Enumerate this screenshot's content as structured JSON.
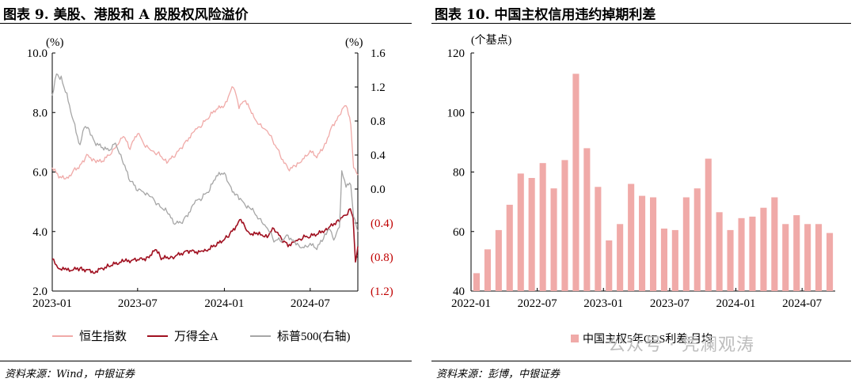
{
  "left": {
    "title": "图表 9. 美股、港股和 A 股股权风险溢价",
    "source": "资料来源：Wind，中银证券",
    "chart_data": {
      "type": "line",
      "x_ticks": [
        "2023-01",
        "2023-07",
        "2024-01",
        "2024-07"
      ],
      "y_left": {
        "unit": "(%)",
        "ticks": [
          "10.0",
          "8.0",
          "6.0",
          "4.0",
          "2.0"
        ],
        "ylim": [
          2.0,
          10.0
        ]
      },
      "y_right": {
        "unit": "(%)",
        "ticks": [
          "1.6",
          "1.2",
          "0.8",
          "0.4",
          "0.0",
          "(0.4)",
          "(0.8)",
          "(1.2)"
        ],
        "ylim": [
          -1.2,
          1.6
        ]
      },
      "x_range": [
        "2023-01-01",
        "2024-10-10"
      ],
      "series": [
        {
          "name": "恒生指数",
          "axis": "left",
          "color": "#f0aaa8",
          "points": [
            [
              "2023-01-01",
              6.15
            ],
            [
              "2023-01-15",
              5.85
            ],
            [
              "2023-02-01",
              5.75
            ],
            [
              "2023-02-15",
              6.05
            ],
            [
              "2023-03-01",
              6.2
            ],
            [
              "2023-03-15",
              6.55
            ],
            [
              "2023-04-01",
              6.4
            ],
            [
              "2023-04-15",
              6.35
            ],
            [
              "2023-05-01",
              6.55
            ],
            [
              "2023-05-15",
              6.85
            ],
            [
              "2023-06-01",
              7.2
            ],
            [
              "2023-06-15",
              6.8
            ],
            [
              "2023-07-01",
              7.35
            ],
            [
              "2023-07-15",
              6.9
            ],
            [
              "2023-08-01",
              6.7
            ],
            [
              "2023-08-15",
              6.6
            ],
            [
              "2023-09-01",
              6.35
            ],
            [
              "2023-09-15",
              6.5
            ],
            [
              "2023-10-01",
              6.8
            ],
            [
              "2023-10-15",
              7.1
            ],
            [
              "2023-11-01",
              7.4
            ],
            [
              "2023-11-15",
              7.6
            ],
            [
              "2023-12-01",
              7.9
            ],
            [
              "2023-12-15",
              8.1
            ],
            [
              "2024-01-01",
              8.25
            ],
            [
              "2024-01-20",
              8.9
            ],
            [
              "2024-02-01",
              8.2
            ],
            [
              "2024-02-15",
              8.4
            ],
            [
              "2024-03-01",
              7.9
            ],
            [
              "2024-03-15",
              7.6
            ],
            [
              "2024-04-01",
              7.4
            ],
            [
              "2024-04-15",
              7.0
            ],
            [
              "2024-05-01",
              6.5
            ],
            [
              "2024-05-15",
              6.1
            ],
            [
              "2024-06-01",
              6.2
            ],
            [
              "2024-06-15",
              6.4
            ],
            [
              "2024-07-01",
              6.7
            ],
            [
              "2024-07-15",
              6.5
            ],
            [
              "2024-08-01",
              6.9
            ],
            [
              "2024-08-15",
              7.5
            ],
            [
              "2024-09-01",
              7.9
            ],
            [
              "2024-09-15",
              8.3
            ],
            [
              "2024-09-25",
              7.6
            ],
            [
              "2024-10-01",
              6.2
            ],
            [
              "2024-10-10",
              5.9
            ]
          ]
        },
        {
          "name": "万得全A",
          "axis": "left",
          "color": "#a01020",
          "points": [
            [
              "2023-01-01",
              3.15
            ],
            [
              "2023-01-10",
              2.8
            ],
            [
              "2023-02-01",
              2.7
            ],
            [
              "2023-03-01",
              2.75
            ],
            [
              "2023-04-01",
              2.65
            ],
            [
              "2023-05-01",
              2.85
            ],
            [
              "2023-06-01",
              3.0
            ],
            [
              "2023-07-01",
              3.05
            ],
            [
              "2023-07-20",
              3.1
            ],
            [
              "2023-08-10",
              3.4
            ],
            [
              "2023-08-20",
              3.1
            ],
            [
              "2023-09-15",
              3.15
            ],
            [
              "2023-10-15",
              3.35
            ],
            [
              "2023-11-15",
              3.3
            ],
            [
              "2023-12-15",
              3.55
            ],
            [
              "2024-01-10",
              3.85
            ],
            [
              "2024-02-05",
              4.4
            ],
            [
              "2024-02-20",
              3.95
            ],
            [
              "2024-03-15",
              3.9
            ],
            [
              "2024-04-01",
              3.85
            ],
            [
              "2024-04-15",
              4.1
            ],
            [
              "2024-05-01",
              3.75
            ],
            [
              "2024-05-15",
              3.55
            ],
            [
              "2024-06-01",
              3.65
            ],
            [
              "2024-06-15",
              3.8
            ],
            [
              "2024-07-01",
              3.85
            ],
            [
              "2024-07-15",
              3.9
            ],
            [
              "2024-08-01",
              4.05
            ],
            [
              "2024-08-15",
              4.2
            ],
            [
              "2024-09-01",
              4.4
            ],
            [
              "2024-09-15",
              4.55
            ],
            [
              "2024-09-24",
              4.75
            ],
            [
              "2024-09-30",
              4.4
            ],
            [
              "2024-10-05",
              3.0
            ],
            [
              "2024-10-10",
              3.5
            ]
          ]
        },
        {
          "name": "标普500(右轴)",
          "axis": "right",
          "color": "#a6a6a6",
          "points": [
            [
              "2023-01-01",
              1.1
            ],
            [
              "2023-01-10",
              1.35
            ],
            [
              "2023-01-20",
              1.3
            ],
            [
              "2023-02-01",
              1.1
            ],
            [
              "2023-02-15",
              0.8
            ],
            [
              "2023-03-01",
              0.5
            ],
            [
              "2023-03-10",
              0.75
            ],
            [
              "2023-03-20",
              0.7
            ],
            [
              "2023-04-01",
              0.55
            ],
            [
              "2023-04-15",
              0.5
            ],
            [
              "2023-05-01",
              0.45
            ],
            [
              "2023-05-15",
              0.55
            ],
            [
              "2023-06-01",
              0.3
            ],
            [
              "2023-06-15",
              0.1
            ],
            [
              "2023-07-01",
              0.0
            ],
            [
              "2023-07-15",
              -0.05
            ],
            [
              "2023-08-01",
              -0.1
            ],
            [
              "2023-08-15",
              -0.2
            ],
            [
              "2023-09-01",
              -0.25
            ],
            [
              "2023-09-15",
              -0.4
            ],
            [
              "2023-10-01",
              -0.4
            ],
            [
              "2023-10-15",
              -0.3
            ],
            [
              "2023-11-01",
              -0.15
            ],
            [
              "2023-11-15",
              -0.1
            ],
            [
              "2023-12-01",
              0.0
            ],
            [
              "2023-12-15",
              0.15
            ],
            [
              "2024-01-01",
              0.2
            ],
            [
              "2024-01-15",
              0.0
            ],
            [
              "2024-02-01",
              -0.1
            ],
            [
              "2024-02-15",
              -0.2
            ],
            [
              "2024-03-01",
              -0.25
            ],
            [
              "2024-03-15",
              -0.35
            ],
            [
              "2024-04-01",
              -0.45
            ],
            [
              "2024-04-15",
              -0.6
            ],
            [
              "2024-05-01",
              -0.6
            ],
            [
              "2024-05-15",
              -0.55
            ],
            [
              "2024-06-01",
              -0.65
            ],
            [
              "2024-06-15",
              -0.7
            ],
            [
              "2024-07-01",
              -0.65
            ],
            [
              "2024-07-15",
              -0.7
            ],
            [
              "2024-08-01",
              -0.55
            ],
            [
              "2024-08-10",
              -0.45
            ],
            [
              "2024-08-20",
              -0.6
            ],
            [
              "2024-09-01",
              -0.45
            ],
            [
              "2024-09-06",
              0.2
            ],
            [
              "2024-09-15",
              0.05
            ],
            [
              "2024-09-25",
              0.05
            ],
            [
              "2024-10-01",
              -0.3
            ],
            [
              "2024-10-10",
              -0.5
            ]
          ]
        }
      ],
      "legend": [
        "恒生指数",
        "万得全A",
        "标普500(右轴)"
      ],
      "legend_position": "bottom"
    }
  },
  "right": {
    "title": "图表 10. 中国主权信用违约掉期利差",
    "source": "资料来源：彭博，中银证券",
    "chart_data": {
      "type": "bar",
      "y_unit": "(个基点)",
      "ylim": [
        40,
        120
      ],
      "y_ticks": [
        "120",
        "100",
        "80",
        "60",
        "40"
      ],
      "x_ticks": [
        {
          "label": "2022-01",
          "index": 0
        },
        {
          "label": "2022-07",
          "index": 6
        },
        {
          "label": "2023-01",
          "index": 12
        },
        {
          "label": "2023-07",
          "index": 18
        },
        {
          "label": "2024-01",
          "index": 24
        },
        {
          "label": "2024-07",
          "index": 30
        }
      ],
      "color": "#f0aaa8",
      "series": [
        {
          "name": "中国主权5年CDS利差:月均",
          "values": [
            46,
            54,
            60.5,
            69,
            79.5,
            78,
            83,
            74.5,
            84,
            113,
            88,
            75,
            57,
            62.5,
            76,
            72,
            71.5,
            61,
            60.5,
            71.5,
            74.5,
            84.5,
            66.5,
            60.5,
            64.5,
            65,
            68,
            71.5,
            62.5,
            65.5,
            62.5,
            62.5,
            59.5
          ]
        }
      ],
      "legend": [
        "中国主权5年CDS利差:月均"
      ],
      "legend_position": "bottom"
    }
  },
  "watermark": "公众号 · 凭澜观涛"
}
